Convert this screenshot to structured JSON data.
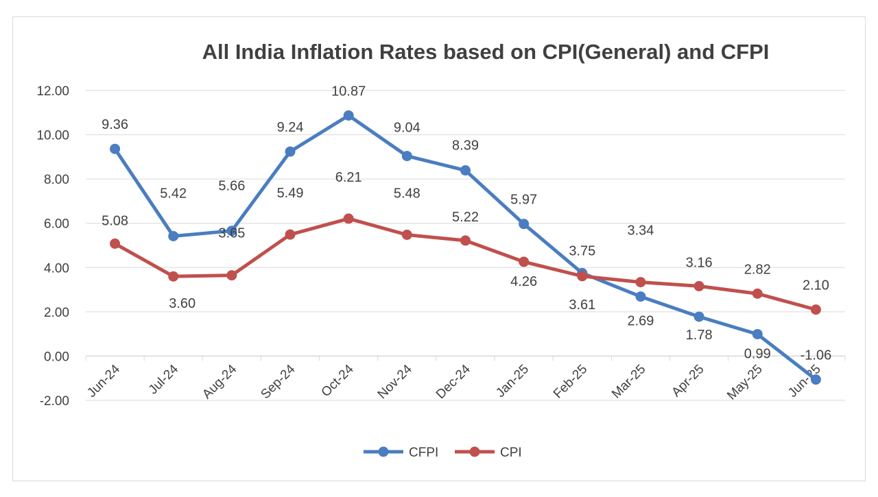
{
  "chart_data": {
    "type": "line",
    "title": "All India Inflation Rates based on CPI(General) and CFPI",
    "xlabel": "",
    "ylabel": "",
    "categories": [
      "Jun-24",
      "Jul-24",
      "Aug-24",
      "Sep-24",
      "Oct-24",
      "Nov-24",
      "Dec-24",
      "Jan-25",
      "Feb-25",
      "Mar-25",
      "Apr-25",
      "May-25",
      "Jun-25"
    ],
    "series": [
      {
        "name": "CFPI",
        "color": "#4a7dc1",
        "values": [
          9.36,
          5.42,
          5.66,
          9.24,
          10.87,
          9.04,
          8.39,
          5.97,
          3.75,
          2.69,
          1.78,
          0.99,
          -1.06
        ]
      },
      {
        "name": "CPI",
        "color": "#c0504d",
        "values": [
          5.08,
          3.6,
          3.65,
          5.49,
          6.21,
          5.48,
          5.22,
          4.26,
          3.61,
          3.34,
          3.16,
          2.82,
          2.1
        ]
      }
    ],
    "ylim": [
      -2,
      12
    ],
    "yticks": [
      "-2.00",
      "0.00",
      "2.00",
      "4.00",
      "6.00",
      "8.00",
      "10.00",
      "12.00"
    ],
    "grid": true,
    "legend": "bottom",
    "data_labels": true
  }
}
